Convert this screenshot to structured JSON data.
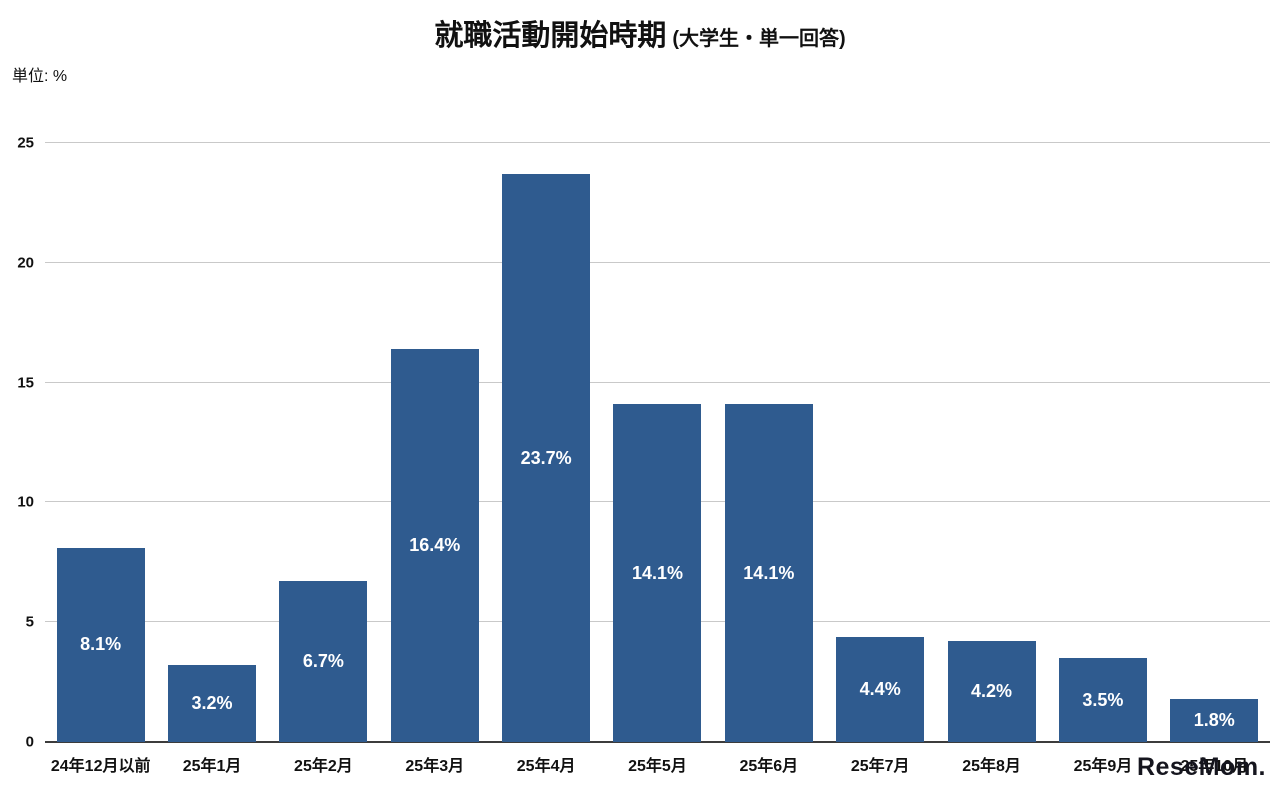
{
  "title": {
    "main": "就職活動開始時期",
    "sub": "(大学生・単一回答)"
  },
  "unit_label": "単位: %",
  "watermark": "ReseMom.",
  "chart_data": {
    "type": "bar",
    "title": "就職活動開始時期 (大学生・単一回答)",
    "xlabel": "",
    "ylabel": "単位: %",
    "categories": [
      "24年12月以前",
      "25年1月",
      "25年2月",
      "25年3月",
      "25年4月",
      "25年5月",
      "25年6月",
      "25年7月",
      "25年8月",
      "25年9月",
      "25年10月"
    ],
    "values": [
      8.1,
      3.2,
      6.7,
      16.4,
      23.7,
      14.1,
      14.1,
      4.4,
      4.2,
      3.5,
      1.8
    ],
    "value_labels": [
      "8.1%",
      "3.2%",
      "6.7%",
      "16.4%",
      "23.7%",
      "14.1%",
      "14.1%",
      "4.4%",
      "4.2%",
      "3.5%",
      "1.8%"
    ],
    "ylim": [
      0,
      25
    ],
    "yticks": [
      0,
      5,
      10,
      15,
      20,
      25
    ],
    "bar_color": "#2F5B8F",
    "grid": true,
    "legend_position": "none"
  }
}
